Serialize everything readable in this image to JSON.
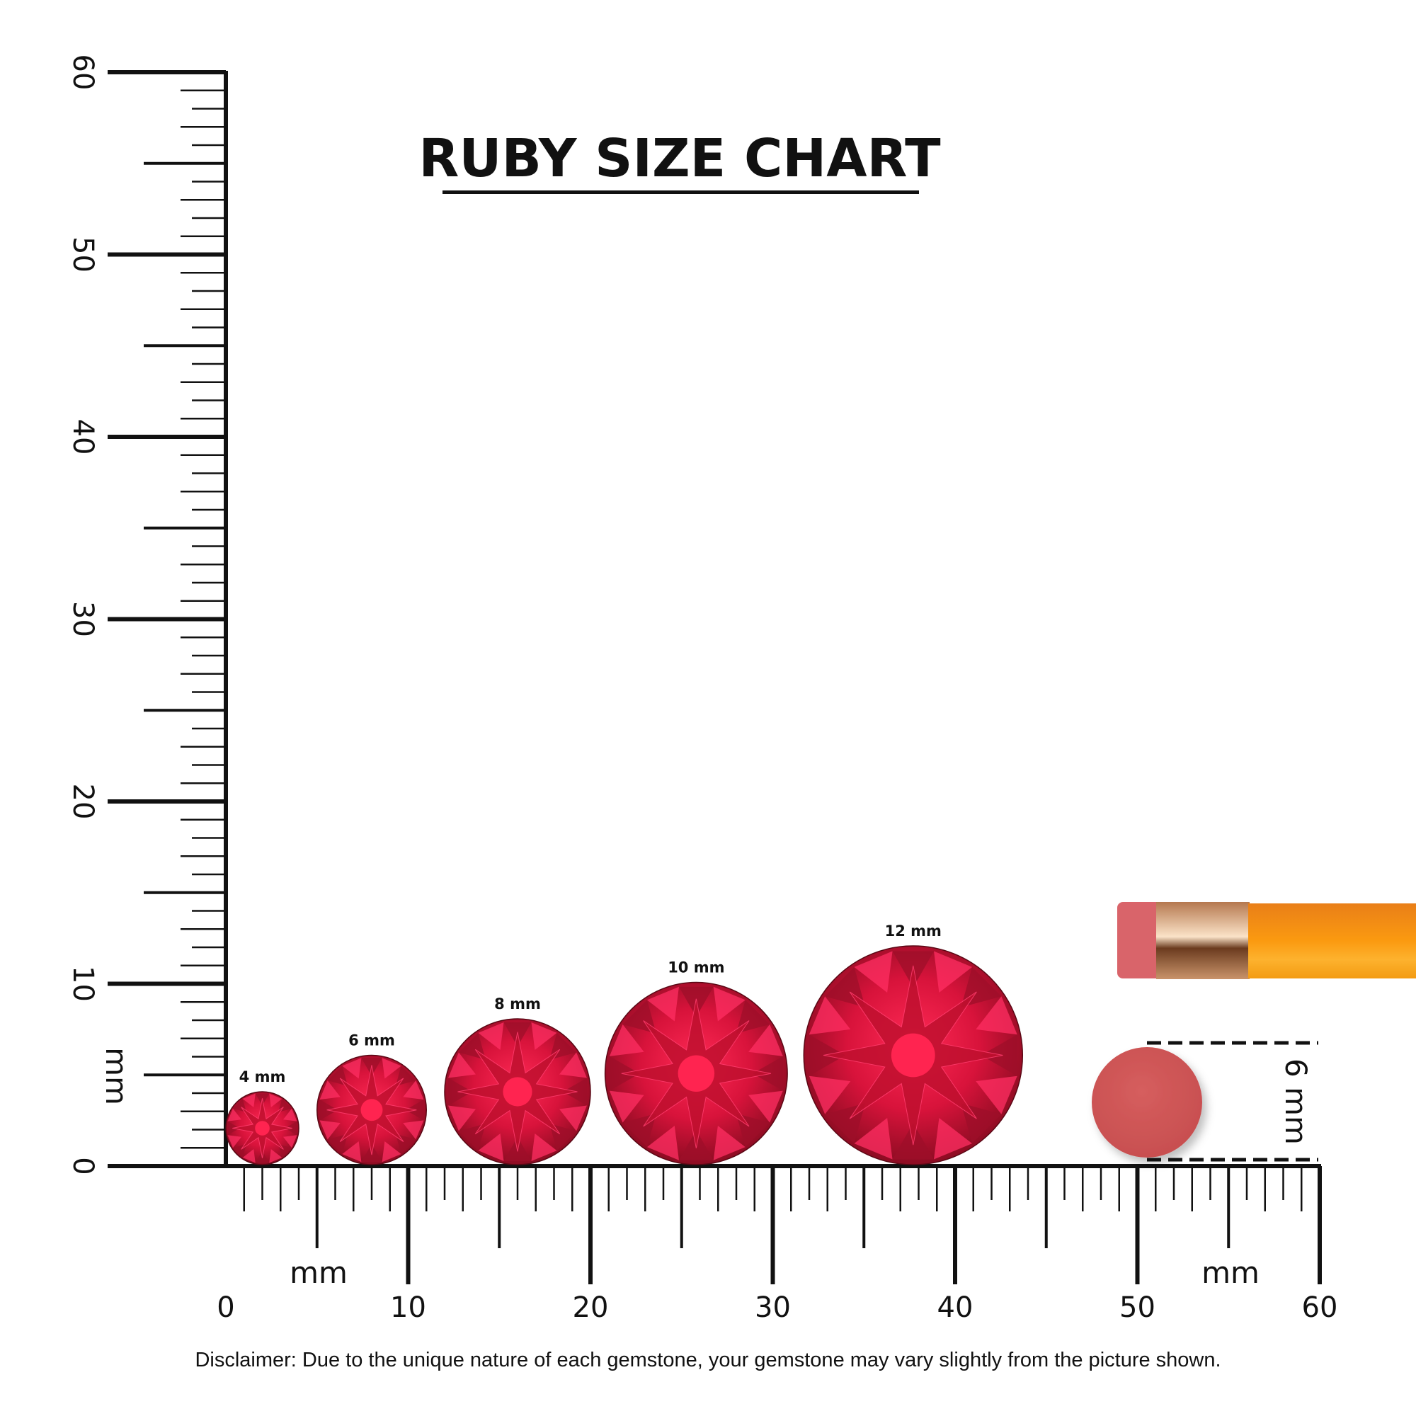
{
  "chart_data": {
    "type": "scatter",
    "title": "RUBY SIZE CHART",
    "xlabel": "mm",
    "ylabel": "mm",
    "xlim": [
      0,
      60
    ],
    "ylim": [
      0,
      60
    ],
    "x_ticks": [
      "0",
      "10",
      "20",
      "30",
      "40",
      "50",
      "60"
    ],
    "y_ticks": [
      "0",
      "10",
      "20",
      "30",
      "40",
      "50",
      "60"
    ],
    "gems": [
      {
        "label": "4 mm",
        "diameter_mm": 4,
        "center_x_mm": 2
      },
      {
        "label": "6 mm",
        "diameter_mm": 6,
        "center_x_mm": 8
      },
      {
        "label": "8 mm",
        "diameter_mm": 8,
        "center_x_mm": 16
      },
      {
        "label": "10 mm",
        "diameter_mm": 10,
        "center_x_mm": 25.8
      },
      {
        "label": "12 mm",
        "diameter_mm": 12,
        "center_x_mm": 37.7
      }
    ],
    "reference": {
      "object": "pencil eraser",
      "label": "6 mm",
      "diameter_mm": 6
    },
    "colors": {
      "ruby": "#e0173f",
      "ruby_dark": "#8c0c22",
      "eraser": "#d15a5a",
      "pencil": "#f7960f",
      "ferrule": "#d9a27a"
    }
  },
  "disclaimer": "Disclaimer: Due to the unique nature of each gemstone, your gemstone may vary slightly from the picture shown."
}
